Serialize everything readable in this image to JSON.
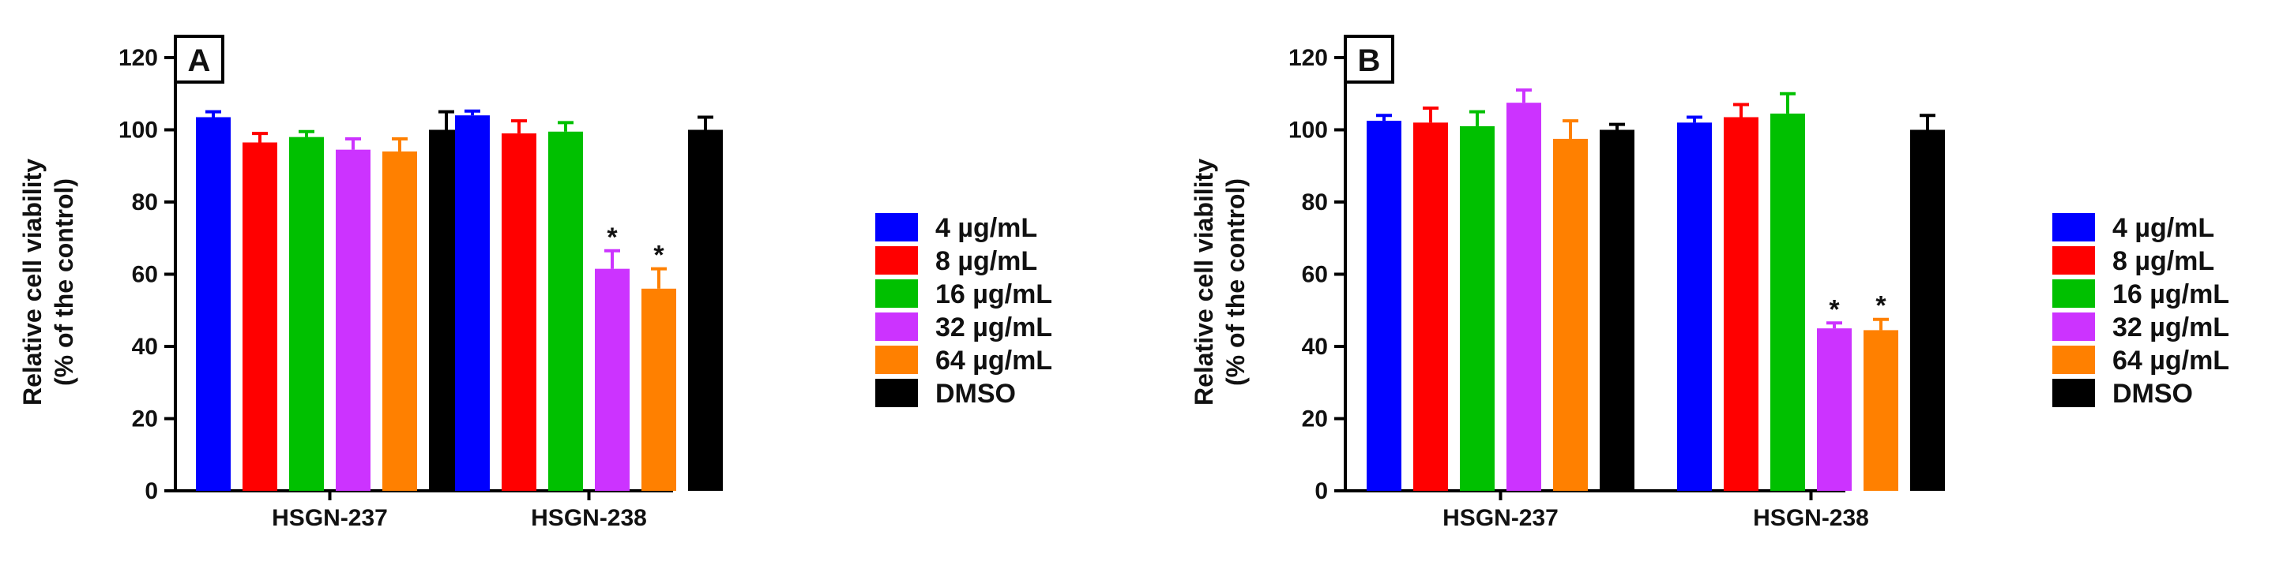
{
  "chart_data": [
    {
      "type": "bar",
      "panel_label": "A",
      "ylabel_lines": [
        "Relative cell viability",
        "(% of the control)"
      ],
      "ylim": [
        0,
        120
      ],
      "yticks": [
        0,
        20,
        40,
        60,
        80,
        100,
        120
      ],
      "categories": [
        "HSGN-237",
        "HSGN-238"
      ],
      "series": [
        {
          "name": "4 µg/mL",
          "color": "#0000ff",
          "values": [
            103.5,
            104.0
          ],
          "errors": [
            1.5,
            1.2
          ],
          "significant": [
            false,
            false
          ]
        },
        {
          "name": "8 µg/mL",
          "color": "#ff0000",
          "values": [
            96.5,
            99.0
          ],
          "errors": [
            2.5,
            3.5
          ],
          "significant": [
            false,
            false
          ]
        },
        {
          "name": "16 µg/mL",
          "color": "#00c000",
          "values": [
            98.0,
            99.5
          ],
          "errors": [
            1.5,
            2.5
          ],
          "significant": [
            false,
            false
          ]
        },
        {
          "name": "32 µg/mL",
          "color": "#cc33ff",
          "values": [
            94.5,
            61.5
          ],
          "errors": [
            3.0,
            5.0
          ],
          "significant": [
            false,
            true
          ]
        },
        {
          "name": "64 µg/mL",
          "color": "#ff8000",
          "values": [
            94.0,
            56.0
          ],
          "errors": [
            3.5,
            5.5
          ],
          "significant": [
            false,
            true
          ]
        },
        {
          "name": "DMSO",
          "color": "#000000",
          "values": [
            100.0,
            100.0
          ],
          "errors": [
            5.0,
            3.5
          ],
          "significant": [
            false,
            false
          ]
        }
      ],
      "significance_marker": "*"
    },
    {
      "type": "bar",
      "panel_label": "B",
      "ylabel_lines": [
        "Relative cell viability",
        "(% of the control)"
      ],
      "ylim": [
        0,
        120
      ],
      "yticks": [
        0,
        20,
        40,
        60,
        80,
        100,
        120
      ],
      "categories": [
        "HSGN-237",
        "HSGN-238"
      ],
      "series": [
        {
          "name": "4 µg/mL",
          "color": "#0000ff",
          "values": [
            102.5,
            102.0
          ],
          "errors": [
            1.5,
            1.5
          ],
          "significant": [
            false,
            false
          ]
        },
        {
          "name": "8 µg/mL",
          "color": "#ff0000",
          "values": [
            102.0,
            103.5
          ],
          "errors": [
            4.0,
            3.5
          ],
          "significant": [
            false,
            false
          ]
        },
        {
          "name": "16 µg/mL",
          "color": "#00c000",
          "values": [
            101.0,
            104.5
          ],
          "errors": [
            4.0,
            5.5
          ],
          "significant": [
            false,
            false
          ]
        },
        {
          "name": "32 µg/mL",
          "color": "#cc33ff",
          "values": [
            107.5,
            45.0
          ],
          "errors": [
            3.5,
            1.5
          ],
          "significant": [
            false,
            true
          ]
        },
        {
          "name": "64 µg/mL",
          "color": "#ff8000",
          "values": [
            97.5,
            44.5
          ],
          "errors": [
            5.0,
            3.0
          ],
          "significant": [
            false,
            true
          ]
        },
        {
          "name": "DMSO",
          "color": "#000000",
          "values": [
            100.0,
            100.0
          ],
          "errors": [
            1.5,
            4.0
          ],
          "significant": [
            false,
            false
          ]
        }
      ],
      "significance_marker": "*"
    }
  ]
}
